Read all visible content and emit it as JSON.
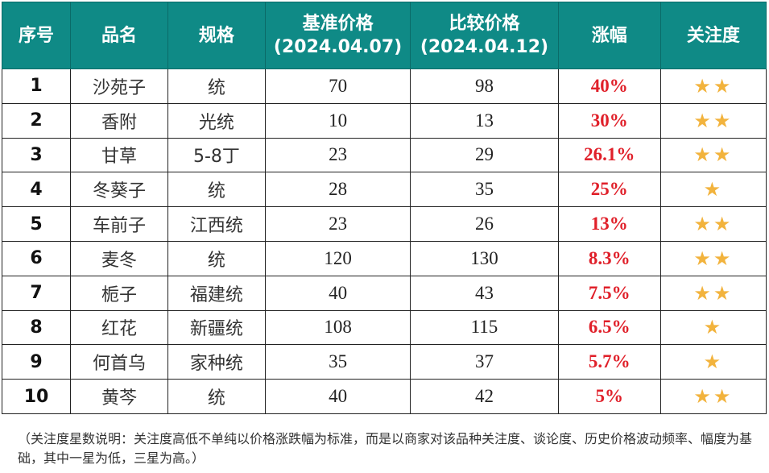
{
  "headers": [
    "序号",
    "品名",
    "规格",
    "基准价格",
    "(2024.04.07)",
    "比较价格",
    "(2024.04.12)",
    "涨幅",
    "关注度"
  ],
  "rows": [
    {
      "idx": "1",
      "name": "沙苑子",
      "spec": "统",
      "base": "70",
      "cmp": "98",
      "chg": "40%",
      "stars": "★★"
    },
    {
      "idx": "2",
      "name": "香附",
      "spec": "光统",
      "base": "10",
      "cmp": "13",
      "chg": "30%",
      "stars": "★★"
    },
    {
      "idx": "3",
      "name": "甘草",
      "spec": "5-8丁",
      "base": "23",
      "cmp": "29",
      "chg": "26.1%",
      "stars": "★★"
    },
    {
      "idx": "4",
      "name": "冬葵子",
      "spec": "统",
      "base": "28",
      "cmp": "35",
      "chg": "25%",
      "stars": "★"
    },
    {
      "idx": "5",
      "name": "车前子",
      "spec": "江西统",
      "base": "23",
      "cmp": "26",
      "chg": "13%",
      "stars": "★★"
    },
    {
      "idx": "6",
      "name": "麦冬",
      "spec": "统",
      "base": "120",
      "cmp": "130",
      "chg": "8.3%",
      "stars": "★★"
    },
    {
      "idx": "7",
      "name": "栀子",
      "spec": "福建统",
      "base": "40",
      "cmp": "43",
      "chg": "7.5%",
      "stars": "★★"
    },
    {
      "idx": "8",
      "name": "红花",
      "spec": "新疆统",
      "base": "108",
      "cmp": "115",
      "chg": "6.5%",
      "stars": "★"
    },
    {
      "idx": "9",
      "name": "何首乌",
      "spec": "家种统",
      "base": "35",
      "cmp": "37",
      "chg": "5.7%",
      "stars": "★"
    },
    {
      "idx": "10",
      "name": "黄芩",
      "spec": "统",
      "base": "40",
      "cmp": "42",
      "chg": "5%",
      "stars": "★★"
    }
  ],
  "note": "（关注度星数说明：关注度高低不单纯以价格涨跌幅为标准，而是以商家对该品种关注度、谈论度、历史价格波动频率、幅度为基础，其中一星为低，三星为高。）",
  "colors": {
    "header_bg": "#0f8a86",
    "header_text": "#ffffff",
    "change_text": "#e0202a",
    "star": "#f2b33d",
    "border": "#222222"
  }
}
